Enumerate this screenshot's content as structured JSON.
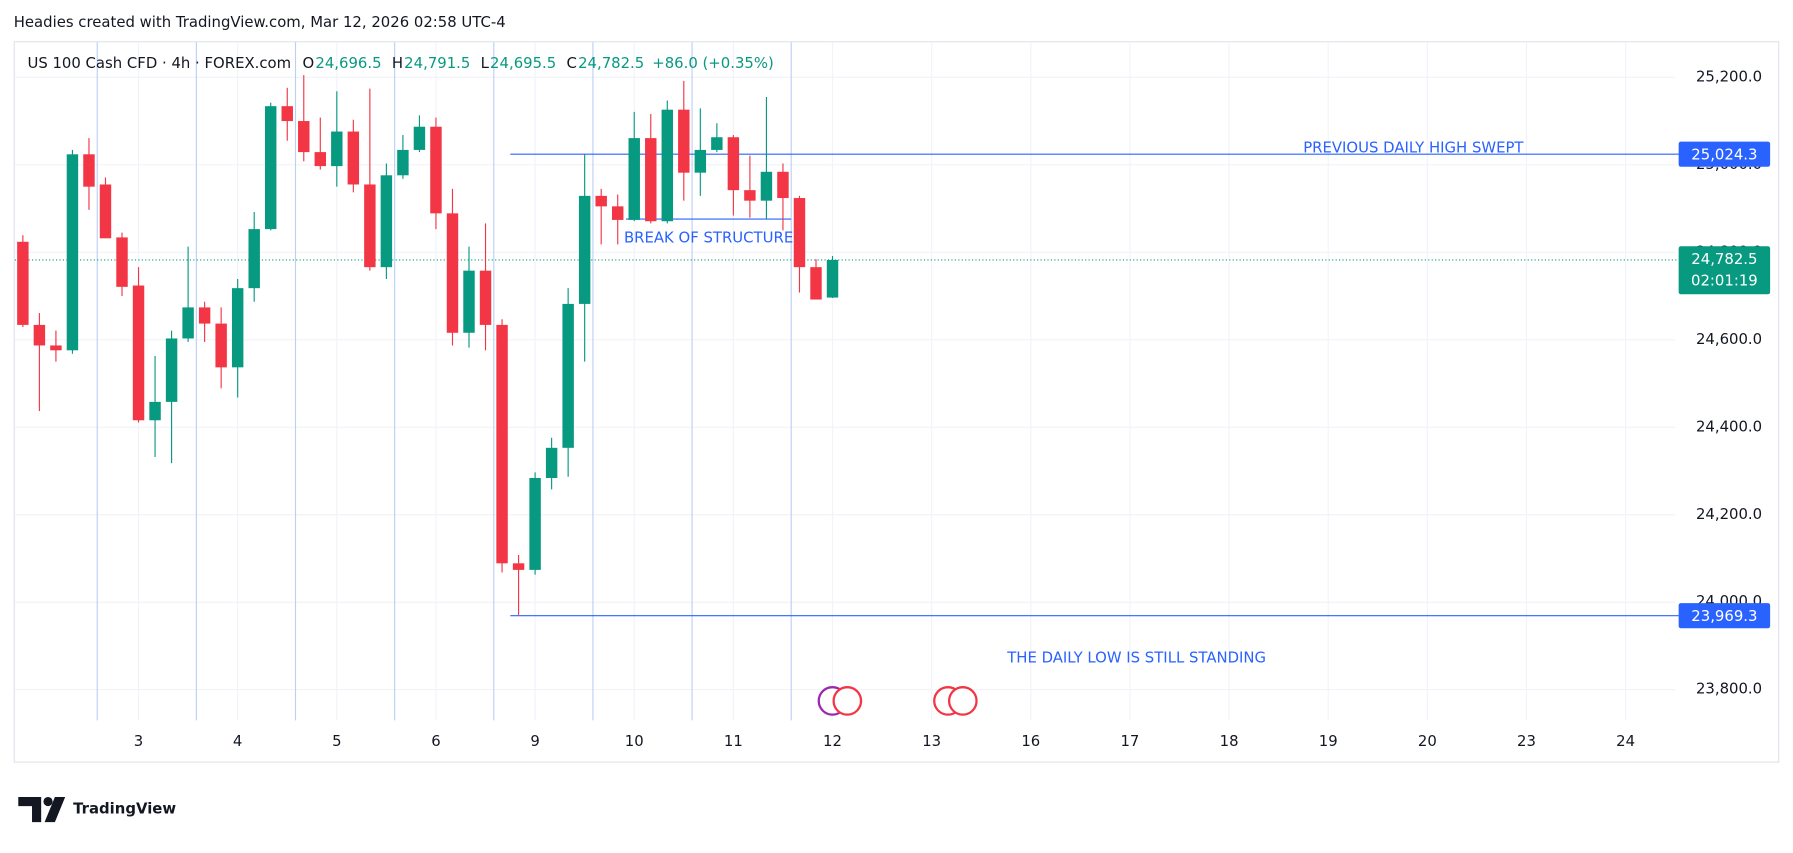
{
  "header": {
    "text": "Headies created with TradingView.com, Mar 12, 2026 02:58 UTC-4"
  },
  "footer": {
    "brand": "TradingView"
  },
  "chart_data": {
    "type": "candlestick",
    "symbol": "US 100 Cash CFD · 4h · FOREX.com",
    "ohlc_legend": [
      {
        "key": "O",
        "value": 24696.5,
        "label": "24,696.5"
      },
      {
        "key": "H",
        "value": 24791.5,
        "label": "24,791.5"
      },
      {
        "key": "L",
        "value": 24695.5,
        "label": "24,695.5"
      },
      {
        "key": "C",
        "value": 24782.5,
        "label": "24,782.5"
      }
    ],
    "change": {
      "value": 86.0,
      "label": "+86.0 (+0.35%)"
    },
    "up_color": "#089981",
    "down_color": "#f23645",
    "line_color": "#2962ff",
    "open": [
      24824,
      24634,
      24587,
      24576,
      25024,
      24955,
      24834,
      24724,
      24416,
      24458,
      24603,
      24674,
      24637,
      24537,
      24718,
      24853,
      25134,
      25100,
      25029,
      24997,
      25076,
      24955,
      24766,
      24976,
      25034,
      25087,
      24889,
      24616,
      24758,
      24634,
      24089,
      24074,
      24284,
      24353,
      24682,
      24929,
      24905,
      24874,
      25061,
      24871,
      25126,
      24982,
      25034,
      25063,
      24942,
      24918,
      24984,
      24924,
      24766,
      24696.5
    ],
    "high": [
      24839,
      24661,
      24621,
      25034,
      25061,
      24971,
      24845,
      24766,
      24563,
      24621,
      24813,
      24687,
      24674,
      24739,
      24892,
      25142,
      25176,
      25205,
      25108,
      25168,
      25103,
      25174,
      25003,
      25068,
      25113,
      25108,
      24945,
      24813,
      24866,
      24647,
      24108,
      24297,
      24376,
      24718,
      25024,
      24945,
      24932,
      25121,
      25116,
      25147,
      25192,
      25129,
      25095,
      25068,
      25021,
      25155,
      25003,
      24929,
      24784,
      24791.5
    ],
    "low": [
      24629,
      24437,
      24550,
      24568,
      24897,
      24832,
      24700,
      24411,
      24332,
      24318,
      24595,
      24595,
      24489,
      24468,
      24687,
      24850,
      25055,
      25008,
      24989,
      24950,
      24937,
      24758,
      24739,
      24968,
      25029,
      24853,
      24587,
      24582,
      24576,
      24068,
      23971,
      24063,
      24258,
      24287,
      24550,
      24818,
      24818,
      24871,
      24866,
      24866,
      24918,
      24929,
      25029,
      24884,
      24879,
      24876,
      24850,
      24708,
      24692,
      24695.5
    ],
    "close": [
      24634,
      24587,
      24576,
      25024,
      24950,
      24832,
      24721,
      24416,
      24458,
      24603,
      24674,
      24637,
      24537,
      24718,
      24853,
      25134,
      25100,
      25029,
      24997,
      25076,
      24955,
      24766,
      24976,
      25034,
      25087,
      24889,
      24616,
      24758,
      24634,
      24089,
      24074,
      24284,
      24353,
      24682,
      24929,
      24905,
      24874,
      25061,
      24871,
      25126,
      24982,
      25034,
      25063,
      24942,
      24918,
      24984,
      24924,
      24766,
      24692,
      24782.5
    ],
    "x_labels": [
      "3",
      "4",
      "5",
      "6",
      "9",
      "10",
      "11",
      "12",
      "13",
      "16",
      "17",
      "18",
      "19",
      "20",
      "23",
      "24"
    ],
    "ylim": [
      23730,
      25280
    ],
    "yticks": [
      {
        "value": 23800,
        "label": "23,800.0"
      },
      {
        "value": 24000,
        "label": "24,000.0"
      },
      {
        "value": 24200,
        "label": "24,200.0"
      },
      {
        "value": 24400,
        "label": "24,400.0"
      },
      {
        "value": 24600,
        "label": "24,600.0"
      },
      {
        "value": 24800,
        "label": "24,800.0"
      },
      {
        "value": 25000,
        "label": "25,000.0"
      },
      {
        "value": 25200,
        "label": "25,200.0"
      }
    ],
    "grid": true,
    "hlines": [
      {
        "value": 25024.3,
        "label": "25,024.3",
        "text": "PREVIOUS DAILY HIGH SWEPT"
      },
      {
        "value": 23969.3,
        "label": "23,969.3",
        "text": "THE DAILY LOW IS STILL STANDING"
      }
    ],
    "structure": {
      "value": 24876,
      "text": "BREAK OF STRUCTURE"
    },
    "last_price": {
      "value": 24782.5,
      "label": "24,782.5",
      "countdown": "02:01:19"
    }
  }
}
